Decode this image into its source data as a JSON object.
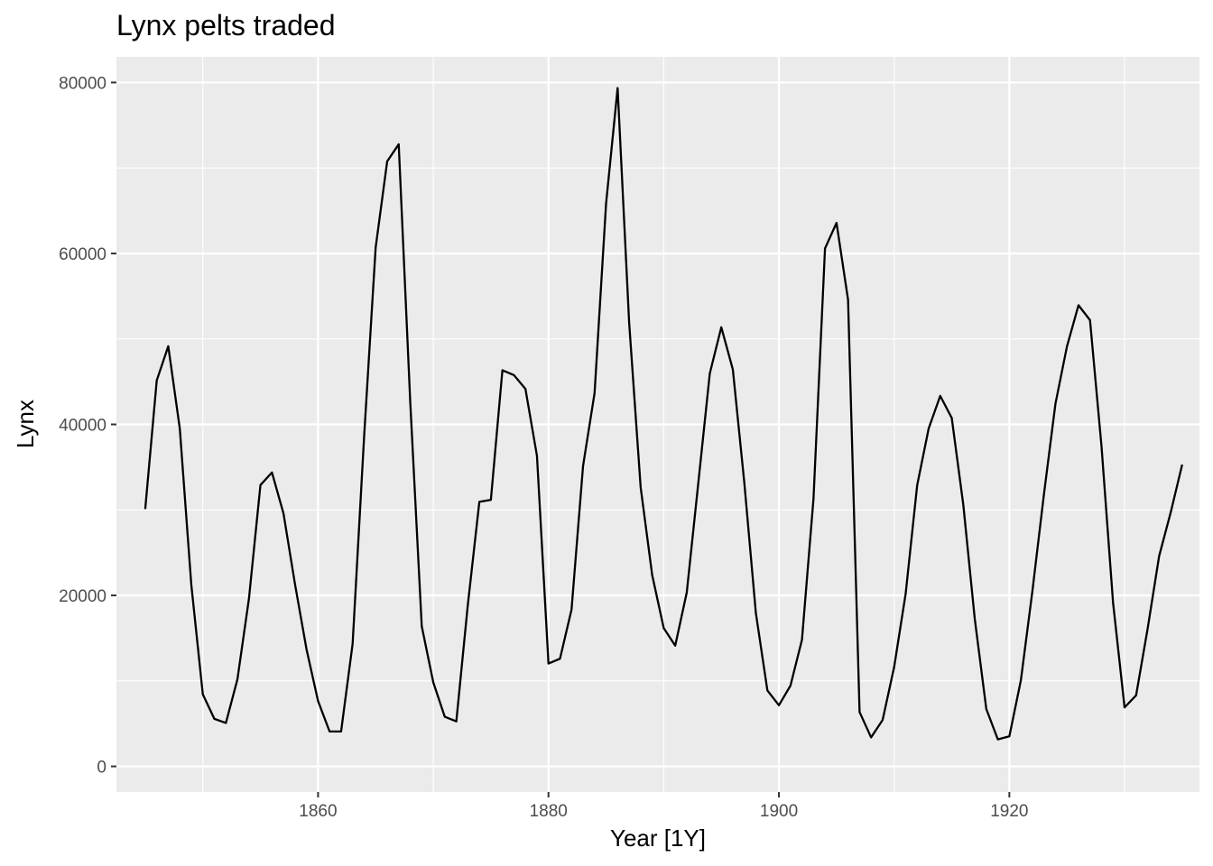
{
  "chart_data": {
    "type": "line",
    "title": "Lynx pelts traded",
    "xlabel": "Year [1Y]",
    "ylabel": "Lynx",
    "xlim": [
      1842.5,
      1936.5
    ],
    "ylim": [
      -3000,
      83000
    ],
    "x_ticks": [
      1860,
      1880,
      1900,
      1920
    ],
    "x_tick_labels": [
      "1860",
      "1880",
      "1900",
      "1920"
    ],
    "y_ticks": [
      0,
      20000,
      40000,
      60000,
      80000
    ],
    "y_tick_labels": [
      "0",
      "20000",
      "40000",
      "60000",
      "80000"
    ],
    "grid": true,
    "legend": "none",
    "colors": {
      "panel": "#ebebeb",
      "grid": "#ffffff",
      "line": "#000000",
      "tick_text": "#4d4d4d"
    },
    "series": [
      {
        "x": [
          1845,
          1846,
          1847,
          1848,
          1849,
          1850,
          1851,
          1852,
          1853,
          1854,
          1855,
          1856,
          1857,
          1858,
          1859,
          1860,
          1861,
          1862,
          1863,
          1864,
          1865,
          1866,
          1867,
          1868,
          1869,
          1870,
          1871,
          1872,
          1873,
          1874,
          1875,
          1876,
          1877,
          1878,
          1879,
          1880,
          1881,
          1882,
          1883,
          1884,
          1885,
          1886,
          1887,
          1888,
          1889,
          1890,
          1891,
          1892,
          1893,
          1894,
          1895,
          1896,
          1897,
          1898,
          1899,
          1900,
          1901,
          1902,
          1903,
          1904,
          1905,
          1906,
          1907,
          1908,
          1909,
          1910,
          1911,
          1912,
          1913,
          1914,
          1915,
          1916,
          1917,
          1918,
          1919,
          1920,
          1921,
          1922,
          1923,
          1924,
          1925,
          1926,
          1927,
          1928,
          1929,
          1930,
          1931,
          1932,
          1933,
          1934,
          1935
        ],
        "values": [
          30090,
          45150,
          49150,
          39520,
          21230,
          8420,
          5560,
          5080,
          10170,
          19600,
          32910,
          34380,
          29590,
          21300,
          13690,
          7650,
          4080,
          4090,
          14330,
          38640,
          60700,
          70770,
          72770,
          42680,
          16390,
          9830,
          5800,
          5260,
          18910,
          30950,
          31180,
          46340,
          45770,
          44150,
          36330,
          12030,
          12600,
          18340,
          35140,
          43670,
          65860,
          79350,
          51920,
          32640,
          22380,
          16180,
          14120,
          20330,
          33110,
          45960,
          51370,
          46430,
          33140,
          17920,
          8880,
          7150,
          9440,
          14810,
          31290,
          60590,
          63580,
          54590,
          6360,
          3390,
          5430,
          11610,
          20200,
          32890,
          39540,
          43340,
          40760,
          30630,
          17230,
          6710,
          3160,
          3520,
          10070,
          20500,
          31810,
          42420,
          49120,
          53940,
          52200,
          37420,
          19160,
          6890,
          8310,
          16090,
          24600,
          29690,
          35300
        ]
      }
    ]
  }
}
